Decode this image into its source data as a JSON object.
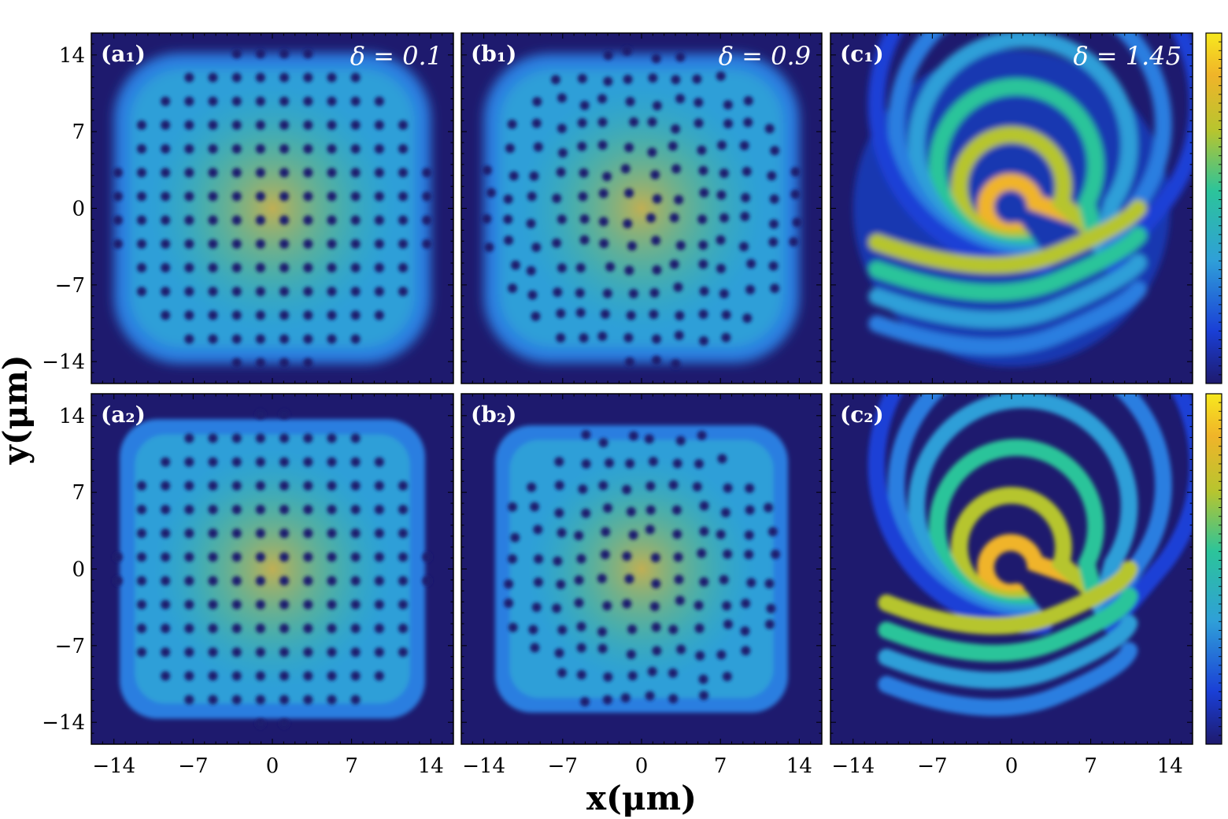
{
  "figure": {
    "xlabel": "x(μm)",
    "ylabel": "y(μm)",
    "colormap": [
      "#1e1a6e",
      "#1a3fd6",
      "#2f9fd8",
      "#2cc49a",
      "#b6c52f",
      "#f0b429",
      "#f7e81e"
    ]
  },
  "chart_data": [
    {
      "type": "heatmap",
      "panel": "a1",
      "label": "(a₁)",
      "annotation": "δ = 0.1",
      "delta": 0.1,
      "pattern": "square lattice of holes (density dips) inside rounded-square condensate",
      "xlim": [
        -16,
        16
      ],
      "ylim": [
        -16,
        16
      ],
      "xticks": [
        -14,
        -7,
        0,
        7,
        14
      ],
      "yticks": [
        -14,
        -7,
        0,
        7,
        14
      ],
      "lattice_spacing": 2.1,
      "radius": 14
    },
    {
      "type": "heatmap",
      "panel": "b1",
      "label": "(b₁)",
      "annotation": "δ = 0.9",
      "delta": 0.9,
      "pattern": "distorted square lattice of holes",
      "xlim": [
        -16,
        16
      ],
      "ylim": [
        -16,
        16
      ],
      "xticks": [
        -14,
        -7,
        0,
        7,
        14
      ],
      "yticks": [
        -14,
        -7,
        0,
        7,
        14
      ],
      "lattice_spacing": 2.1,
      "radius": 14
    },
    {
      "type": "heatmap",
      "panel": "c1",
      "label": "(c₁)",
      "annotation": "δ = 1.45",
      "delta": 1.45,
      "pattern": "stripe (labyrinth) phase",
      "xlim": [
        -16,
        16
      ],
      "ylim": [
        -16,
        16
      ],
      "xticks": [
        -14,
        -7,
        0,
        7,
        14
      ],
      "yticks": [
        -14,
        -7,
        0,
        7,
        14
      ],
      "radius": 14
    },
    {
      "type": "heatmap",
      "panel": "a2",
      "label": "(a₂)",
      "annotation": "",
      "pattern": "square lattice of holes, sharper boundary",
      "xlim": [
        -16,
        16
      ],
      "ylim": [
        -16,
        16
      ],
      "xticks": [
        -14,
        -7,
        0,
        7,
        14
      ],
      "yticks": [
        -14,
        -7,
        0,
        7,
        14
      ],
      "lattice_spacing": 2.1,
      "radius": 13.5
    },
    {
      "type": "heatmap",
      "panel": "b2",
      "label": "(b₂)",
      "annotation": "",
      "pattern": "square lattice of holes, sharper boundary",
      "xlim": [
        -16,
        16
      ],
      "ylim": [
        -16,
        16
      ],
      "xticks": [
        -14,
        -7,
        0,
        7,
        14
      ],
      "yticks": [
        -14,
        -7,
        0,
        7,
        14
      ],
      "lattice_spacing": 2.1,
      "radius": 13
    },
    {
      "type": "heatmap",
      "panel": "c2",
      "label": "(c₂)",
      "annotation": "",
      "pattern": "stripe (labyrinth) phase, higher contrast",
      "xlim": [
        -16,
        16
      ],
      "ylim": [
        -16,
        16
      ],
      "xticks": [
        -14,
        -7,
        0,
        7,
        14
      ],
      "yticks": [
        -14,
        -7,
        0,
        7,
        14
      ],
      "radius": 13
    }
  ]
}
